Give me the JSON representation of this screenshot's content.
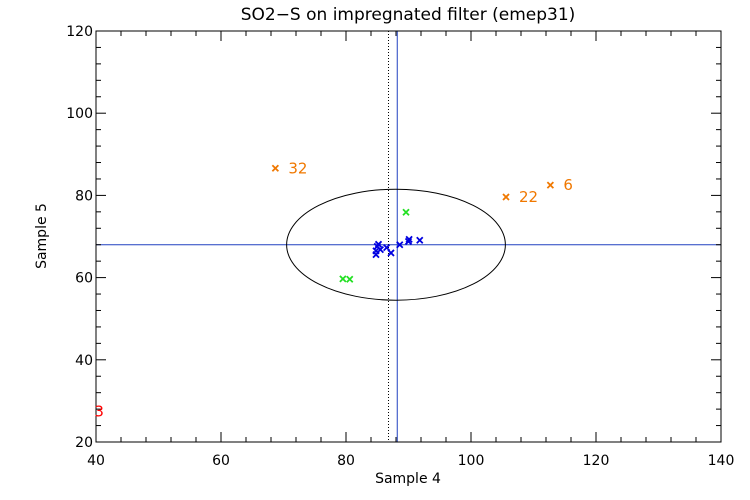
{
  "chart_data": {
    "type": "scatter",
    "title": "SO2−S on impregnated filter (emep31)",
    "xlabel": "Sample 4",
    "ylabel": "Sample 5",
    "xlim": [
      40,
      140
    ],
    "ylim": [
      20,
      120
    ],
    "xticks": [
      40,
      60,
      80,
      100,
      120,
      140
    ],
    "yticks": [
      20,
      40,
      60,
      80,
      100,
      120
    ],
    "grid": false,
    "colors": {
      "blue": "#0000e0",
      "green": "#22e022",
      "orange": "#f07800",
      "red": "#ff0000",
      "ref": "#2040c0"
    },
    "reference": {
      "hline_y": 68,
      "vline_x": 88.2,
      "dotted_vline_x": 86.8,
      "ellipse": {
        "cx": 88,
        "cy": 68,
        "rx": 17.5,
        "ry": 13.5
      }
    },
    "series": [
      {
        "color": "#0000e0",
        "x": [
          84.8,
          84.8,
          85.0,
          85.2,
          85.5,
          86.5,
          87.2,
          88.6,
          90.0,
          90.1,
          91.8
        ],
        "y": [
          65.6,
          66.5,
          67.6,
          68.1,
          66.8,
          67.3,
          66.0,
          68.0,
          68.8,
          69.3,
          69.1
        ]
      },
      {
        "color": "#22e022",
        "x": [
          79.5,
          80.6,
          89.6
        ],
        "y": [
          59.7,
          59.6,
          75.9
        ]
      },
      {
        "color": "#f07800",
        "x": [
          68.7,
          105.6,
          112.7
        ],
        "y": [
          86.6,
          79.6,
          82.5
        ],
        "labels": [
          "32",
          "22",
          "6"
        ]
      },
      {
        "color": "#ff0000",
        "x": [
          40.5
        ],
        "y": [
          27.7
        ],
        "labels": [
          "3"
        ]
      }
    ]
  }
}
